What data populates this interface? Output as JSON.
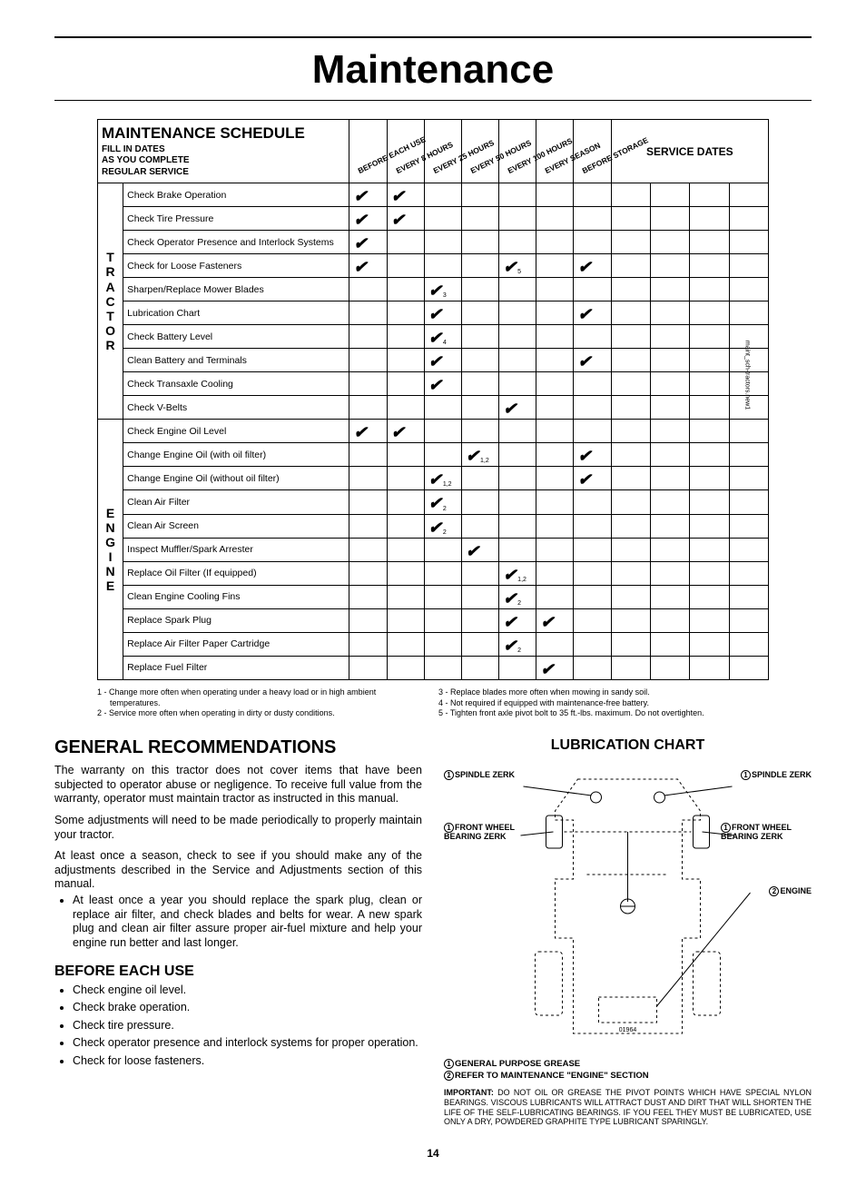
{
  "title": "Maintenance",
  "schedule": {
    "header_title": "MAINTENANCE SCHEDULE",
    "header_sub": "FILL IN DATES\nAS YOU COMPLETE\nREGULAR SERVICE",
    "intervals": [
      "BEFORE EACH USE",
      "EVERY 8 HOURS",
      "EVERY 25 HOURS",
      "EVERY 50 HOURS",
      "EVERY 100 HOURS",
      "EVERY SEASON",
      "BEFORE STORAGE"
    ],
    "service_dates_label": "SERVICE DATES",
    "service_date_cols": 4,
    "categories": [
      {
        "label": "TRACTOR",
        "rows": [
          {
            "task": "Check Brake Operation",
            "marks": {
              "0": "",
              "1": ""
            }
          },
          {
            "task": "Check Tire Pressure",
            "marks": {
              "0": "",
              "1": ""
            }
          },
          {
            "task": "Check Operator Presence and Interlock Systems",
            "marks": {
              "0": ""
            }
          },
          {
            "task": "Check for Loose Fasteners",
            "marks": {
              "0": "",
              "4": "5",
              "6": ""
            }
          },
          {
            "task": "Sharpen/Replace Mower Blades",
            "marks": {
              "2": "3"
            }
          },
          {
            "task": "Lubrication Chart",
            "marks": {
              "2": "",
              "6": ""
            }
          },
          {
            "task": "Check Battery Level",
            "marks": {
              "2": "4"
            }
          },
          {
            "task": "Clean Battery and Terminals",
            "marks": {
              "2": "",
              "6": ""
            }
          },
          {
            "task": "Check Transaxle Cooling",
            "marks": {
              "2": ""
            }
          },
          {
            "task": "Check V-Belts",
            "marks": {
              "4": ""
            }
          }
        ]
      },
      {
        "label": "ENGINE",
        "rows": [
          {
            "task": "Check Engine Oil Level",
            "marks": {
              "0": "",
              "1": ""
            }
          },
          {
            "task": "Change Engine Oil (with oil filter)",
            "marks": {
              "3": "1,2",
              "6": ""
            }
          },
          {
            "task": "Change Engine Oil (without oil filter)",
            "marks": {
              "2": "1,2",
              "6": ""
            }
          },
          {
            "task": "Clean Air Filter",
            "marks": {
              "2": "2"
            }
          },
          {
            "task": "Clean Air Screen",
            "marks": {
              "2": "2"
            }
          },
          {
            "task": "Inspect Muffler/Spark Arrester",
            "marks": {
              "3": ""
            }
          },
          {
            "task": "Replace Oil Filter (If equipped)",
            "marks": {
              "4": "1,2"
            }
          },
          {
            "task": "Clean Engine Cooling Fins",
            "marks": {
              "4": "2"
            }
          },
          {
            "task": "Replace Spark Plug",
            "marks": {
              "4": "",
              "5": ""
            }
          },
          {
            "task": "Replace Air Filter Paper Cartridge",
            "marks": {
              "4": "2"
            }
          },
          {
            "task": "Replace Fuel Filter",
            "marks": {
              "5": ""
            }
          }
        ]
      }
    ],
    "side_note": "maint_sch-tractors.new1"
  },
  "footnotes_left": [
    "1 - Change more often when operating under a heavy load or in high ambient temperatures.",
    "2 - Service more often when operating in dirty or dusty conditions."
  ],
  "footnotes_right": [
    "3 - Replace blades more often when mowing in sandy soil.",
    "4 - Not required if equipped with maintenance-free battery.",
    "5 - Tighten front axle pivot bolt to 35 ft.-lbs. maximum. Do not overtighten."
  ],
  "left_col": {
    "h2": "GENERAL RECOMMENDATIONS",
    "paras": [
      "The warranty on this tractor does not cover items that have been subjected to operator abuse or negligence. To receive full value from the warranty, operator must maintain tractor as instructed in this manual.",
      "Some adjustments will need to be made periodically to properly maintain your tractor.",
      "At least once a season, check to see if you should make any of the adjustments described in the Service and Adjustments section of this manual."
    ],
    "season_bullet": "At least once a year you should replace the spark plug, clean or replace air filter, and check blades and belts for wear.  A new spark plug and clean air filter assure proper air-fuel mixture and help your engine run better and last longer.",
    "before_each_use": {
      "title": "BEFORE EACH USE",
      "items": [
        "Check engine oil level.",
        "Check brake operation.",
        "Check tire pressure.",
        "Check operator presence and interlock systems for proper operation.",
        "Check for loose fasteners."
      ]
    }
  },
  "right_col": {
    "title": "LUBRICATION CHART",
    "labels": {
      "spindle_l": "SPINDLE ZERK",
      "spindle_r": "SPINDLE ZERK",
      "wheel_l": "FRONT WHEEL BEARING ZERK",
      "wheel_r": "FRONT WHEEL BEARING ZERK",
      "engine": "ENGINE"
    },
    "diagram_id": "01964",
    "key1": "GENERAL PURPOSE GREASE",
    "key2": "REFER TO MAINTENANCE \"ENGINE\" SECTION",
    "important": "IMPORTANT:  DO NOT OIL OR GREASE THE PIVOT POINTS WHICH HAVE SPECIAL NYLON BEARINGS.  VISCOUS LUBRICANTS WILL ATTRACT DUST AND DIRT THAT WILL SHORTEN THE LIFE OF THE SELF-LUBRICATING BEARINGS.  IF YOU FEEL THEY MUST BE LUBRICATED, USE ONLY A DRY, POWDERED GRAPHITE TYPE LUBRICANT SPARINGLY."
  },
  "page_number": "14"
}
